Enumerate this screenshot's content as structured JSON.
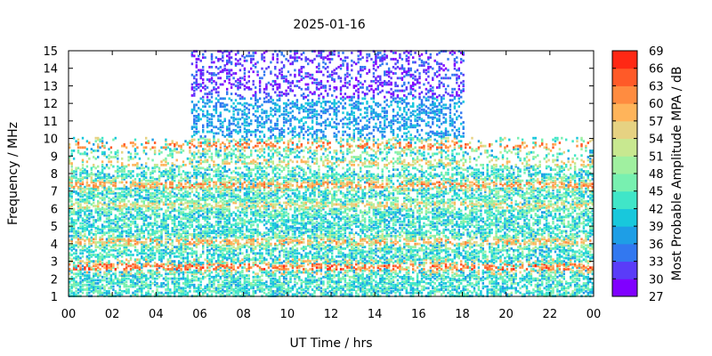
{
  "chart_data": {
    "type": "heatmap",
    "title": "2025-01-16",
    "xlabel": "UT Time / hrs",
    "ylabel": "Frequency / MHz",
    "colorbar_label": "Most Probable Amplitude MPA / dB",
    "xlim": [
      0,
      24
    ],
    "ylim": [
      1,
      15
    ],
    "x_ticks": [
      "00",
      "02",
      "04",
      "06",
      "08",
      "10",
      "12",
      "14",
      "16",
      "18",
      "20",
      "22",
      "00"
    ],
    "y_ticks": [
      "1",
      "2",
      "3",
      "4",
      "5",
      "6",
      "7",
      "8",
      "9",
      "10",
      "11",
      "12",
      "13",
      "14",
      "15"
    ],
    "colorbar_range": [
      27,
      69
    ],
    "colorbar_ticks": [
      "27",
      "30",
      "33",
      "36",
      "39",
      "42",
      "45",
      "48",
      "51",
      "54",
      "57",
      "60",
      "63",
      "66",
      "69"
    ],
    "colorbar_colors": [
      "#8000ff",
      "#5a3cf8",
      "#3278f0",
      "#1e9ee6",
      "#18c8dc",
      "#40e6c8",
      "#78f0b0",
      "#a0f0a0",
      "#c8e890",
      "#e6d282",
      "#ffb45a",
      "#ff8c40",
      "#ff5a28",
      "#ff2814"
    ],
    "features": [
      {
        "name": "day-high-freq-band",
        "t_start": 5.5,
        "t_end": 18,
        "f_max": 15
      },
      {
        "name": "night-high-freq-limit",
        "f_max": 10
      },
      {
        "name": "strong-band-2.7MHz",
        "freq": 2.7,
        "db": 63
      },
      {
        "name": "band-4MHz",
        "freq": 4.1,
        "db": 58
      },
      {
        "name": "band-6MHz",
        "freq": 6.2,
        "db": 55
      },
      {
        "name": "band-7.3MHz",
        "freq": 7.3,
        "db": 60
      },
      {
        "name": "band-8.6MHz",
        "freq": 8.6,
        "db": 56
      },
      {
        "name": "band-9.6MHz",
        "freq": 9.6,
        "db": 62
      }
    ]
  }
}
